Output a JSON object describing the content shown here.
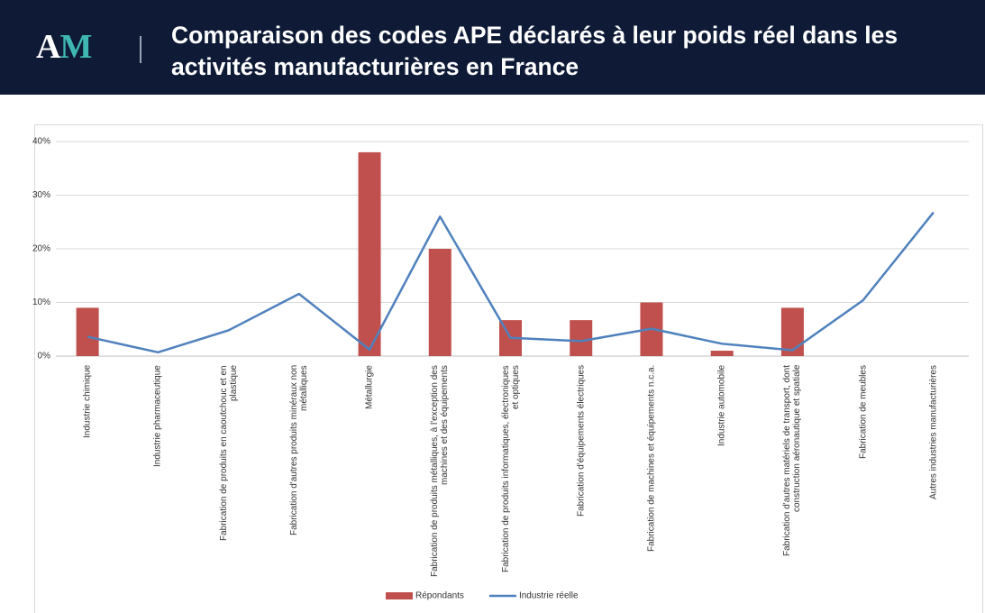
{
  "header": {
    "logo": "AM",
    "title": "Comparaison des codes APE déclarés à leur poids réel dans les activités manufacturières en France"
  },
  "chart_data": {
    "type": "bar",
    "categories": [
      "Industrie chimique",
      "Industrie pharmaceutique",
      "Fabrication de produits en caoutchouc et en plastique",
      "Fabrication d'autres produits minéraux non métalliques",
      "Métallurgie",
      "Fabrication de produits métalliques, à l'exception des machines et des équipements",
      "Fabrication de produits informatiques, électroniques et optiques",
      "Fabrication d'équipements électriques",
      "Fabrication de machines et équipements n.c.a.",
      "Industrie automobile",
      "Fabrication d'autres matériels de transport, dont construction aéronautique et spatiale",
      "Fabrication de meubles",
      "Autres industries manufacturières"
    ],
    "series": [
      {
        "name": "Répondants",
        "type": "bar",
        "color": "#c0504d",
        "values": [
          9,
          0,
          0,
          0,
          38,
          20,
          6.7,
          6.7,
          10,
          1,
          9,
          0,
          0
        ]
      },
      {
        "name": "Industrie réelle",
        "type": "line",
        "color": "#4f81bd",
        "values": [
          3.6,
          0.7,
          4.8,
          11.6,
          1.2,
          26,
          3.4,
          2.8,
          5.1,
          2.3,
          1.1,
          10.4,
          26.8
        ]
      }
    ],
    "ylim": [
      0,
      40
    ],
    "yticks": [
      {
        "value": 0,
        "label": "0%"
      },
      {
        "value": 10,
        "label": "10%"
      },
      {
        "value": 20,
        "label": "20%"
      },
      {
        "value": 30,
        "label": "30%"
      },
      {
        "value": 40,
        "label": "40%"
      }
    ],
    "grid": true,
    "legend": "bottom"
  }
}
